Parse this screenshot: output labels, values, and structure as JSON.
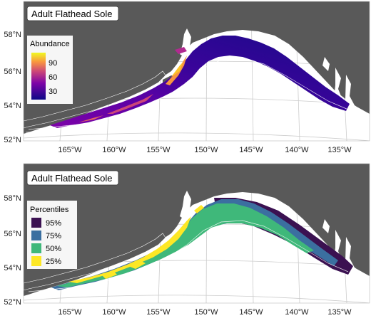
{
  "colors": {
    "land": "#595959",
    "sea": "#ffffff",
    "grid": "#c8c8c8",
    "abundance_low": "#0d0887",
    "abundance_mid": "#9c179e",
    "abundance_high": "#fdc328",
    "pct_95": "#3b1151",
    "pct_75": "#3b6fa0",
    "pct_50": "#3fb87a",
    "pct_25": "#fde725"
  },
  "axes": {
    "lat_labels": [
      "58°N",
      "56°N",
      "54°N",
      "52°N"
    ],
    "lon_labels": [
      "165°W",
      "160°W",
      "155°W",
      "150°W",
      "145°W",
      "140°W",
      "135°W"
    ]
  },
  "top_panel": {
    "title": "Adult Flathead Sole",
    "legend": {
      "title": "Abundance",
      "ticks": [
        "90",
        "60",
        "30"
      ],
      "max": 100
    }
  },
  "bottom_panel": {
    "title": "Adult Flathead Sole",
    "legend": {
      "title": "Percentiles",
      "items": [
        {
          "label": "95%",
          "color_key": "pct_95"
        },
        {
          "label": "75%",
          "color_key": "pct_75"
        },
        {
          "label": "50%",
          "color_key": "pct_50"
        },
        {
          "label": "25%",
          "color_key": "pct_25"
        }
      ]
    }
  }
}
